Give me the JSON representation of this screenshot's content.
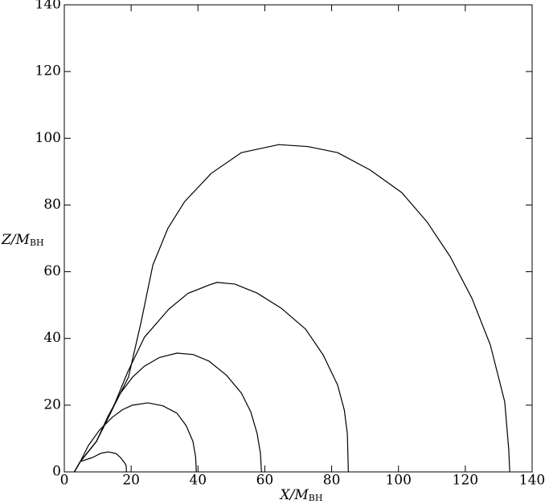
{
  "chart_data": {
    "type": "line",
    "xlabel": {
      "text": "X/M",
      "sub": "BH"
    },
    "ylabel": {
      "text": "Z/M",
      "sub": "BH"
    },
    "xlim": [
      0,
      140
    ],
    "ylim": [
      0,
      140
    ],
    "xticks": [
      0,
      20,
      40,
      60,
      80,
      100,
      120,
      140
    ],
    "yticks": [
      0,
      20,
      40,
      60,
      80,
      100,
      120,
      140
    ],
    "series": [
      {
        "color": "#000000",
        "x": [
          3,
          4.8,
          8.4,
          11,
          13.2,
          15.5,
          16.8,
          18,
          18.5,
          18.6
        ],
        "values": [
          0,
          3.1,
          4.3,
          5.6,
          6,
          5.5,
          4.3,
          2.8,
          1.9,
          0
        ]
      },
      {
        "color": "#000000",
        "x": [
          3,
          4.8,
          7.2,
          10.5,
          14.4,
          17.5,
          20.4,
          25,
          29.5,
          33.7,
          36.5,
          38.5,
          39.3,
          39.5
        ],
        "values": [
          0,
          3.1,
          7.9,
          12.5,
          16.4,
          18.7,
          20,
          20.7,
          19.8,
          17.6,
          13.8,
          9.1,
          4.5,
          0
        ]
      },
      {
        "color": "#000000",
        "x": [
          3,
          4.8,
          9.6,
          13,
          16.8,
          20.5,
          24,
          28.5,
          33.7,
          38.5,
          43.3,
          48.5,
          53,
          55.8,
          57.7,
          58.7,
          59
        ],
        "values": [
          0,
          3.1,
          9.1,
          16.5,
          23.6,
          28.5,
          31.7,
          34.3,
          35.6,
          35.2,
          33.2,
          29,
          23.6,
          18,
          11.5,
          5.5,
          0
        ]
      },
      {
        "color": "#000000",
        "x": [
          3,
          4.8,
          9.6,
          14.4,
          19,
          24,
          31.3,
          37,
          43.3,
          45.7,
          51,
          57.7,
          65,
          72.2,
          77.5,
          81.8,
          83.8,
          84.7,
          85
        ],
        "values": [
          0,
          3.1,
          9.1,
          18.8,
          30,
          40.4,
          48.8,
          53.5,
          56,
          56.8,
          56.3,
          53.6,
          49,
          42.8,
          35,
          26,
          18.5,
          11.5,
          0
        ]
      },
      {
        "color": "#000000",
        "x": [
          3,
          4.8,
          9.6,
          14.4,
          19.2,
          23,
          26.5,
          31,
          36,
          44,
          53,
          64.2,
          73,
          81.8,
          91.5,
          101,
          108.5,
          115.5,
          122,
          127.5,
          131.8,
          133,
          133.3
        ],
        "values": [
          0,
          3.1,
          9.1,
          18.8,
          28.4,
          45,
          62,
          73,
          81,
          89.5,
          95.7,
          98.1,
          97.5,
          95.7,
          90.5,
          83.7,
          75,
          64.5,
          52,
          38,
          21,
          6.7,
          0
        ]
      }
    ]
  }
}
